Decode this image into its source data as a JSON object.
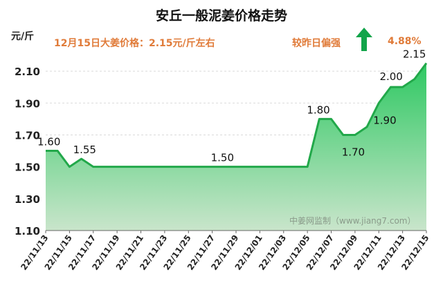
{
  "header": {
    "title": "安丘一般泥姜价格走势",
    "unit": "元/斤",
    "price_text": "12月15日大姜价格：2.15元/斤左右",
    "compare_label": "较昨日偏强",
    "change_pct": "4.88%",
    "arrow_icon": "up-arrow-icon"
  },
  "watermark": "中姜网监制（www.jiang7.com）",
  "colors": {
    "line": "#22a84a",
    "fill_top": "#2ec862",
    "fill_bottom": "#c9e5cb",
    "accent": "#e07b39",
    "arrow": "#12a44a"
  },
  "chart_data": {
    "type": "area",
    "title": "安丘一般泥姜价格走势",
    "ylabel": "元/斤",
    "xlabel": "",
    "ylim": [
      1.1,
      2.2
    ],
    "y_ticks": [
      "1.10",
      "1.30",
      "1.50",
      "1.70",
      "1.90",
      "2.10"
    ],
    "x_tick_labels": [
      "22/11/13",
      "22/11/15",
      "22/11/17",
      "22/11/19",
      "22/11/21",
      "22/11/23",
      "22/11/25",
      "22/11/27",
      "22/11/29",
      "22/12/01",
      "22/12/03",
      "22/12/05",
      "22/12/07",
      "22/12/09",
      "22/12/11",
      "22/12/13",
      "22/12/15"
    ],
    "x": [
      "22/11/13",
      "22/11/14",
      "22/11/15",
      "22/11/16",
      "22/11/17",
      "22/11/18",
      "22/11/19",
      "22/11/20",
      "22/11/21",
      "22/11/22",
      "22/11/23",
      "22/11/24",
      "22/11/25",
      "22/11/26",
      "22/11/27",
      "22/11/28",
      "22/11/29",
      "22/11/30",
      "22/12/01",
      "22/12/02",
      "22/12/03",
      "22/12/04",
      "22/12/05",
      "22/12/06",
      "22/12/07",
      "22/12/08",
      "22/12/09",
      "22/12/10",
      "22/12/11",
      "22/12/12",
      "22/12/13",
      "22/12/14",
      "22/12/15"
    ],
    "values": [
      1.6,
      1.6,
      1.5,
      1.55,
      1.5,
      1.5,
      1.5,
      1.5,
      1.5,
      1.5,
      1.5,
      1.5,
      1.5,
      1.5,
      1.5,
      1.5,
      1.5,
      1.5,
      1.5,
      1.5,
      1.5,
      1.5,
      1.5,
      1.8,
      1.8,
      1.7,
      1.7,
      1.75,
      1.9,
      2.0,
      2.0,
      2.05,
      2.15
    ],
    "data_labels": [
      {
        "x": "22/11/13",
        "text": "1.60"
      },
      {
        "x": "22/11/16",
        "text": "1.55"
      },
      {
        "x": "22/11/27",
        "text": "1.50"
      },
      {
        "x": "22/12/06",
        "text": "1.80"
      },
      {
        "x": "22/12/08",
        "text": "1.70"
      },
      {
        "x": "22/12/11",
        "text": "1.90"
      },
      {
        "x": "22/12/12",
        "text": "2.00"
      },
      {
        "x": "22/12/15",
        "text": "2.15"
      }
    ],
    "grid": true,
    "legend": "none"
  }
}
